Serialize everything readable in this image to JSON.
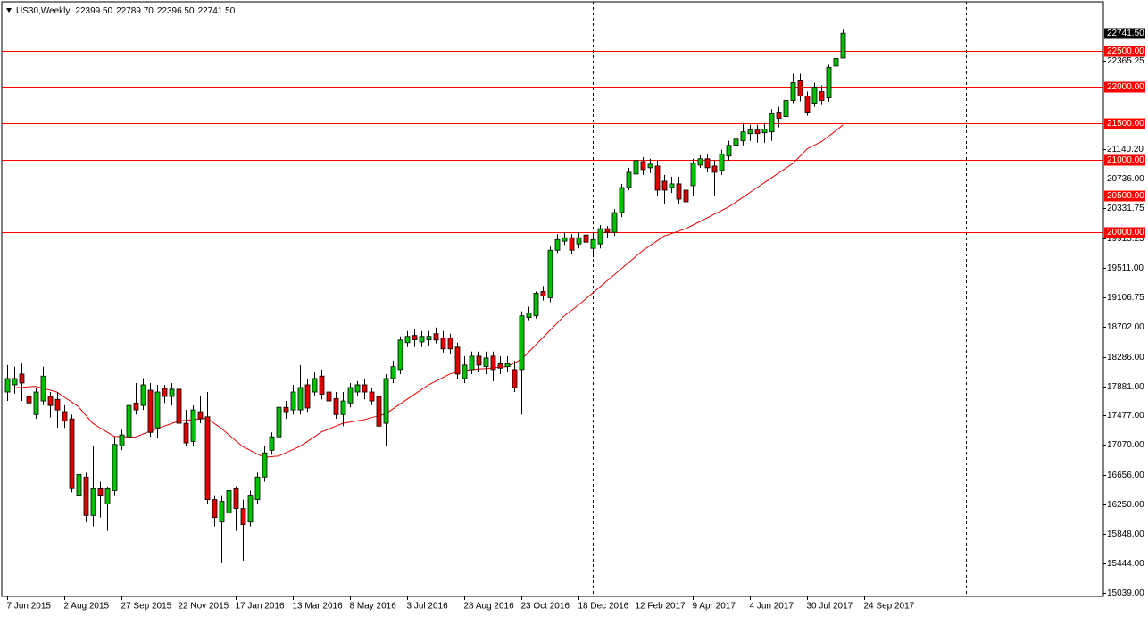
{
  "chart_data": {
    "type": "candlestick",
    "title": "US30,Weekly",
    "header_values": [
      "22399.50",
      "22789.70",
      "22396.50",
      "22741.50"
    ],
    "x": [
      "2015-06-07",
      "2015-06-14",
      "2015-06-21",
      "2015-06-28",
      "2015-07-05",
      "2015-07-12",
      "2015-07-19",
      "2015-07-26",
      "2015-08-02",
      "2015-08-09",
      "2015-08-16",
      "2015-08-23",
      "2015-08-30",
      "2015-09-06",
      "2015-09-13",
      "2015-09-20",
      "2015-09-27",
      "2015-10-04",
      "2015-10-11",
      "2015-10-18",
      "2015-10-25",
      "2015-11-01",
      "2015-11-08",
      "2015-11-15",
      "2015-11-22",
      "2015-11-29",
      "2015-12-06",
      "2015-12-13",
      "2015-12-20",
      "2015-12-27",
      "2016-01-03",
      "2016-01-10",
      "2016-01-17",
      "2016-01-24",
      "2016-01-31",
      "2016-02-07",
      "2016-02-14",
      "2016-02-21",
      "2016-02-28",
      "2016-03-06",
      "2016-03-13",
      "2016-03-20",
      "2016-03-27",
      "2016-04-03",
      "2016-04-10",
      "2016-04-17",
      "2016-04-24",
      "2016-05-01",
      "2016-05-08",
      "2016-05-15",
      "2016-05-22",
      "2016-05-29",
      "2016-06-05",
      "2016-06-12",
      "2016-06-19",
      "2016-06-26",
      "2016-07-03",
      "2016-07-10",
      "2016-07-17",
      "2016-07-24",
      "2016-07-31",
      "2016-08-07",
      "2016-08-14",
      "2016-08-21",
      "2016-08-28",
      "2016-09-04",
      "2016-09-11",
      "2016-09-18",
      "2016-09-25",
      "2016-10-02",
      "2016-10-09",
      "2016-10-16",
      "2016-10-23",
      "2016-10-30",
      "2016-11-06",
      "2016-11-13",
      "2016-11-20",
      "2016-11-27",
      "2016-12-04",
      "2016-12-11",
      "2016-12-18",
      "2016-12-25",
      "2017-01-01",
      "2017-01-08",
      "2017-01-15",
      "2017-01-22",
      "2017-01-29",
      "2017-02-05",
      "2017-02-12",
      "2017-02-19",
      "2017-02-26",
      "2017-03-05",
      "2017-03-12",
      "2017-03-19",
      "2017-03-26",
      "2017-04-02",
      "2017-04-09",
      "2017-04-16",
      "2017-04-23",
      "2017-04-30",
      "2017-05-07",
      "2017-05-14",
      "2017-05-21",
      "2017-05-28",
      "2017-06-04",
      "2017-06-11",
      "2017-06-18",
      "2017-06-25",
      "2017-07-02",
      "2017-07-09",
      "2017-07-16",
      "2017-07-23",
      "2017-07-30",
      "2017-08-06",
      "2017-08-13",
      "2017-08-20",
      "2017-08-27",
      "2017-09-03"
    ],
    "open": [
      17801,
      17900,
      18048,
      17740,
      17490,
      17678,
      17740,
      17700,
      17530,
      17431,
      16380,
      16630,
      16100,
      16470,
      16260,
      16443,
      17060,
      17184,
      17650,
      17616,
      17826,
      17307,
      17850,
      17740,
      17840,
      17370,
      17120,
      17530,
      17460,
      16319,
      16010,
      16134,
      16470,
      16196,
      16010,
      16319,
      16630,
      16998,
      17184,
      17590,
      17554,
      17554,
      17900,
      17801,
      18020,
      17801,
      17710,
      17490,
      17650,
      17801,
      17900,
      17801,
      17740,
      17370,
      17986,
      18110,
      18480,
      18580,
      18490,
      18520,
      18604,
      18543,
      18543,
      18419,
      17986,
      18110,
      18295,
      18150,
      18295,
      18190,
      18150,
      18110,
      18110,
      18826,
      18850,
      19185,
      19099,
      19753,
      19877,
      19926,
      19840,
      19963,
      19778,
      19840,
      20050,
      20000,
      20272,
      20617,
      20802,
      20975,
      20889,
      20913,
      20704,
      20617,
      20667,
      20580,
      20642,
      20926,
      21013,
      20913,
      20852,
      21050,
      21198,
      21260,
      21358,
      21408,
      21370,
      21383,
      21655,
      21593,
      21815,
      22087,
      21877,
      21778,
      21938,
      21852,
      22290,
      22399.5
    ],
    "high": [
      18172,
      18150,
      18190,
      17801,
      17860,
      18150,
      17801,
      17801,
      17620,
      17490,
      16710,
      16690,
      17060,
      16566,
      16500,
      17184,
      17280,
      17678,
      17925,
      17990,
      17925,
      17900,
      17900,
      17925,
      17925,
      17554,
      17616,
      17740,
      17801,
      16380,
      16380,
      16505,
      16505,
      16319,
      16443,
      16690,
      17060,
      17245,
      17650,
      17678,
      17900,
      18172,
      17986,
      18070,
      18110,
      17863,
      17801,
      17801,
      17925,
      17950,
      17986,
      17863,
      17986,
      18048,
      18230,
      18567,
      18640,
      18666,
      18640,
      18640,
      18690,
      18640,
      18604,
      18480,
      18295,
      18357,
      18357,
      18357,
      18357,
      18295,
      18295,
      18230,
      18913,
      18975,
      19185,
      19260,
      19803,
      19975,
      20000,
      19975,
      20000,
      20025,
      20000,
      20100,
      20087,
      20320,
      20667,
      20889,
      21160,
      21037,
      21013,
      20988,
      20790,
      20766,
      20766,
      20642,
      21013,
      21061,
      21075,
      20988,
      21136,
      21260,
      21358,
      21507,
      21482,
      21482,
      21507,
      21692,
      21728,
      21852,
      22185,
      22185,
      21938,
      22062,
      22025,
      22309,
      22420,
      22789.7
    ],
    "low": [
      17678,
      17780,
      17678,
      17520,
      17431,
      17620,
      17450,
      17307,
      17307,
      16420,
      15207,
      16010,
      15949,
      16072,
      15890,
      16380,
      17000,
      17120,
      17490,
      17554,
      17184,
      17160,
      17650,
      17616,
      17307,
      17060,
      17060,
      17370,
      16257,
      15949,
      15454,
      15825,
      15890,
      15480,
      15949,
      16257,
      16566,
      16937,
      17120,
      17431,
      17490,
      17490,
      17530,
      17740,
      17700,
      17490,
      17431,
      17330,
      17590,
      17740,
      17700,
      17620,
      17245,
      17060,
      17925,
      18048,
      18419,
      18419,
      18419,
      18440,
      18470,
      18345,
      18320,
      17986,
      17925,
      18048,
      18070,
      18048,
      17950,
      18048,
      18070,
      17801,
      17490,
      18789,
      18813,
      19061,
      19037,
      19716,
      19827,
      19703,
      19778,
      19803,
      19654,
      19778,
      19926,
      19951,
      20210,
      20580,
      20740,
      20790,
      20815,
      20494,
      20395,
      20543,
      20395,
      20370,
      20494,
      20889,
      20827,
      20494,
      20790,
      20988,
      21136,
      21198,
      21260,
      21235,
      21235,
      21260,
      21445,
      21532,
      21778,
      21803,
      21605,
      21728,
      21753,
      21800,
      22247,
      22396.5
    ],
    "close": [
      17986,
      17986,
      17925,
      17650,
      17801,
      18020,
      17615,
      17554,
      17400,
      16470,
      16665,
      16100,
      16470,
      16380,
      16470,
      17080,
      17210,
      17616,
      17554,
      17900,
      17245,
      17801,
      17740,
      17840,
      17370,
      17100,
      17554,
      17431,
      16319,
      16072,
      16295,
      16443,
      16196,
      15975,
      16380,
      16630,
      16963,
      17184,
      17590,
      17530,
      17801,
      17863,
      17580,
      17986,
      17770,
      17678,
      17490,
      17678,
      17863,
      17900,
      17801,
      17678,
      17330,
      17986,
      18150,
      18517,
      18567,
      18520,
      18567,
      18567,
      18517,
      18394,
      18394,
      18048,
      18172,
      18295,
      18172,
      18270,
      18110,
      18130,
      18190,
      17863,
      18850,
      18888,
      19160,
      19123,
      19753,
      19901,
      19926,
      19753,
      19926,
      19864,
      19901,
      20050,
      20000,
      20272,
      20617,
      20827,
      20988,
      20864,
      20938,
      20580,
      20580,
      20667,
      20457,
      20420,
      20951,
      21013,
      20889,
      20827,
      21075,
      21198,
      21284,
      21383,
      21408,
      21358,
      21420,
      21630,
      21568,
      21815,
      22062,
      21877,
      21655,
      22000,
      21815,
      22272,
      22395,
      22741.5
    ],
    "up_color": "#00c000",
    "down_color": "#e00000",
    "moving_average": {
      "color": "#e00000",
      "values": [
        17850,
        17858,
        17865,
        17872,
        17880,
        17853,
        17827,
        17800,
        17733,
        17667,
        17600,
        17485,
        17370,
        17310,
        17250,
        17190,
        17187,
        17183,
        17180,
        17220,
        17260,
        17295,
        17330,
        17365,
        17400,
        17410,
        17420,
        17430,
        17440,
        17370,
        17300,
        17217,
        17133,
        17050,
        17000,
        16950,
        16900,
        16910,
        16920,
        16963,
        17007,
        17050,
        17117,
        17183,
        17250,
        17290,
        17330,
        17370,
        17387,
        17403,
        17420,
        17447,
        17473,
        17500,
        17567,
        17633,
        17700,
        17767,
        17833,
        17900,
        17950,
        18000,
        18050,
        18075,
        18100,
        18108,
        18117,
        18125,
        18133,
        18142,
        18150,
        18200,
        18250,
        18350,
        18450,
        18550,
        18650,
        18750,
        18850,
        18925,
        19000,
        19083,
        19167,
        19250,
        19333,
        19417,
        19500,
        19583,
        19667,
        19750,
        19817,
        19883,
        19950,
        19983,
        20017,
        20050,
        20100,
        20150,
        20200,
        20250,
        20300,
        20350,
        20417,
        20483,
        20550,
        20617,
        20683,
        20750,
        20817,
        20883,
        20950,
        21050,
        21150,
        21200,
        21250,
        21325,
        21400,
        21480
      ]
    },
    "levels": [
      {
        "value": 22500,
        "label": "22500.00"
      },
      {
        "value": 22000,
        "label": "22000.00"
      },
      {
        "value": 21500,
        "label": "21500.00"
      },
      {
        "value": 21000,
        "label": "21000.00"
      },
      {
        "value": 20500,
        "label": "20500.00"
      },
      {
        "value": 20000,
        "label": "20000.00"
      }
    ],
    "level_color": "#ff0000",
    "price_label": {
      "value": 22741.5,
      "label": "22741.50"
    },
    "period_separators": [
      "2016-01-01",
      "2017-01-01",
      "2018-01-01"
    ],
    "xlim": [
      "2015-06-02",
      "2018-05-16"
    ],
    "xticks": [
      {
        "value": "2015-06-07",
        "label": "7 Jun 2015"
      },
      {
        "value": "2015-08-02",
        "label": "2 Aug 2015"
      },
      {
        "value": "2015-09-27",
        "label": "27 Sep 2015"
      },
      {
        "value": "2015-11-22",
        "label": "22 Nov 2015"
      },
      {
        "value": "2016-01-17",
        "label": "17 Jan 2016"
      },
      {
        "value": "2016-03-13",
        "label": "13 Mar 2016"
      },
      {
        "value": "2016-05-08",
        "label": "8 May 2016"
      },
      {
        "value": "2016-07-03",
        "label": "3 Jul 2016"
      },
      {
        "value": "2016-08-28",
        "label": "28 Aug 2016"
      },
      {
        "value": "2016-10-23",
        "label": "23 Oct 2016"
      },
      {
        "value": "2016-12-18",
        "label": "18 Dec 2016"
      },
      {
        "value": "2017-02-12",
        "label": "12 Feb 2017"
      },
      {
        "value": "2017-04-09",
        "label": "9 Apr 2017"
      },
      {
        "value": "2017-06-04",
        "label": "4 Jun 2017"
      },
      {
        "value": "2017-07-30",
        "label": "30 Jul 2017"
      },
      {
        "value": "2017-09-24",
        "label": "24 Sep 2017"
      }
    ],
    "ylim": [
      14986,
      23174
    ],
    "yticks": [
      {
        "value": 22365.25,
        "label": "22365.25"
      },
      {
        "value": 21140.2,
        "label": "21140.20"
      },
      {
        "value": 20736,
        "label": "20736.00"
      },
      {
        "value": 20331.75,
        "label": "20331.75"
      },
      {
        "value": 19915.25,
        "label": "19915.25"
      },
      {
        "value": 19511,
        "label": "19511.00"
      },
      {
        "value": 19106.75,
        "label": "19106.75"
      },
      {
        "value": 18702,
        "label": "18702.00"
      },
      {
        "value": 18286,
        "label": "18286.00"
      },
      {
        "value": 17881,
        "label": "17881.00"
      },
      {
        "value": 17477,
        "label": "17477.00"
      },
      {
        "value": 17070,
        "label": "17070.00"
      },
      {
        "value": 16656,
        "label": "16656.00"
      },
      {
        "value": 16250,
        "label": "16250.00"
      },
      {
        "value": 15848,
        "label": "15848.00"
      },
      {
        "value": 15444,
        "label": "15444.00"
      },
      {
        "value": 15039,
        "label": "15039.00"
      }
    ]
  }
}
